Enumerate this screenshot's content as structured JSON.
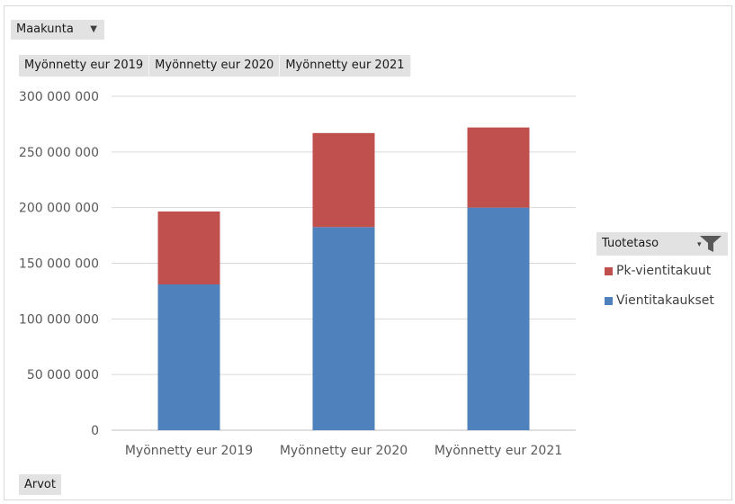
{
  "filters": {
    "report_field": "Maakunta",
    "column_fields": [
      "Myönnetty eur 2019",
      "Myönnetty eur 2020",
      "Myönnetty eur 2021"
    ],
    "values_field": "Arvot",
    "legend_field": "Tuotetaso"
  },
  "colors": {
    "vientitakaukset": "#4f81bd",
    "pk_vientitakuut": "#c0504d",
    "gridline": "#d9d9d9",
    "field_button": "#e2e2e2"
  },
  "chart_data": {
    "type": "bar",
    "stacked": true,
    "categories": [
      "Myönnetty eur 2019",
      "Myönnetty eur 2020",
      "Myönnetty eur 2021"
    ],
    "series": [
      {
        "name": "Vientitakaukset",
        "values": [
          131000000,
          182500000,
          200000000
        ],
        "color": "#4f81bd"
      },
      {
        "name": "Pk-vientitakuut",
        "values": [
          65500000,
          84500000,
          72000000
        ],
        "color": "#c0504d"
      }
    ],
    "ylim": [
      0,
      300000000
    ],
    "yticks": [
      0,
      50000000,
      100000000,
      150000000,
      200000000,
      250000000,
      300000000
    ],
    "ytick_labels": [
      "0",
      "50 000 000",
      "100 000 000",
      "150 000 000",
      "200 000 000",
      "250 000 000",
      "300 000 000"
    ],
    "grid": true,
    "legend_position": "right",
    "legend": [
      "Pk-vientitakuut",
      "Vientitakaukset"
    ]
  }
}
